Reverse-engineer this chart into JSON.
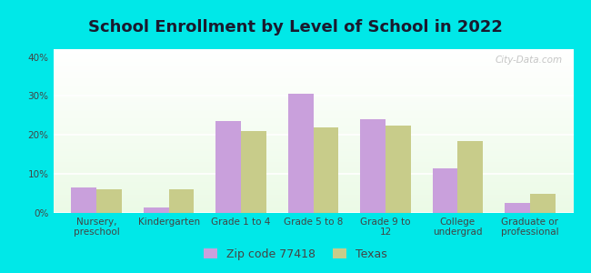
{
  "title": "School Enrollment by Level of School in 2022",
  "categories": [
    "Nursery,\npreschool",
    "Kindergarten",
    "Grade 1 to 4",
    "Grade 5 to 8",
    "Grade 9 to\n12",
    "College\nundergrad",
    "Graduate or\nprofessional"
  ],
  "zip_values": [
    6.5,
    1.5,
    23.5,
    30.5,
    24.0,
    11.5,
    2.5
  ],
  "texas_values": [
    6.0,
    6.0,
    21.0,
    22.0,
    22.5,
    18.5,
    5.0
  ],
  "zip_color": "#c9a0dc",
  "texas_color": "#c8cc8a",
  "background_color": "#00e8e8",
  "title_fontsize": 13,
  "tick_fontsize": 7.5,
  "legend_fontsize": 9,
  "ylim": [
    0,
    42
  ],
  "yticks": [
    0,
    10,
    20,
    30,
    40
  ],
  "watermark": "City-Data.com",
  "bar_width": 0.35
}
